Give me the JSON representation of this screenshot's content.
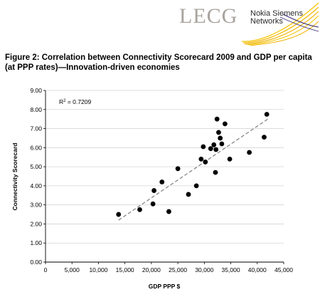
{
  "logos": {
    "lecg": "LECG",
    "nsn_line1": "Nokia Siemens",
    "nsn_line2": "Networks"
  },
  "figure_title": "Figure 2: Correlation between Connectivity Scorecard 2009 and GDP per capita (at PPP rates)—Innovation-driven economies",
  "chart_data": {
    "type": "scatter",
    "title": "",
    "xlabel": "GDP PPP $",
    "ylabel": "Connectivity Scorecard",
    "xlim": [
      0,
      45000
    ],
    "ylim": [
      0,
      9
    ],
    "x_ticks": [
      "0",
      "5,000",
      "10,000",
      "15,000",
      "20,000",
      "25,000",
      "30,000",
      "35,000",
      "40,000",
      "45,000"
    ],
    "y_ticks": [
      "0.00",
      "1.00",
      "2.00",
      "3.00",
      "4.00",
      "5.00",
      "6.00",
      "7.00",
      "8.00",
      "9.00"
    ],
    "annotation": "R",
    "annotation_sup": "2",
    "annotation_value": " = 0.7209",
    "trendline": {
      "x": [
        13800,
        42000
      ],
      "y": [
        2.2,
        7.5
      ],
      "style": "dashed"
    },
    "points": [
      {
        "x": 13800,
        "y": 2.5
      },
      {
        "x": 17800,
        "y": 2.75
      },
      {
        "x": 20300,
        "y": 3.05
      },
      {
        "x": 20500,
        "y": 3.75
      },
      {
        "x": 22000,
        "y": 4.2
      },
      {
        "x": 23300,
        "y": 2.65
      },
      {
        "x": 25000,
        "y": 4.9
      },
      {
        "x": 27000,
        "y": 3.55
      },
      {
        "x": 28500,
        "y": 4.0
      },
      {
        "x": 29400,
        "y": 5.4
      },
      {
        "x": 29800,
        "y": 6.05
      },
      {
        "x": 30200,
        "y": 5.25
      },
      {
        "x": 31200,
        "y": 5.95
      },
      {
        "x": 31800,
        "y": 6.15
      },
      {
        "x": 32100,
        "y": 4.7
      },
      {
        "x": 32200,
        "y": 5.9
      },
      {
        "x": 32400,
        "y": 7.5
      },
      {
        "x": 32700,
        "y": 6.8
      },
      {
        "x": 33000,
        "y": 6.5
      },
      {
        "x": 33300,
        "y": 6.2
      },
      {
        "x": 33900,
        "y": 7.25
      },
      {
        "x": 34800,
        "y": 5.4
      },
      {
        "x": 38500,
        "y": 5.75
      },
      {
        "x": 41300,
        "y": 6.55
      },
      {
        "x": 41800,
        "y": 7.75
      }
    ]
  }
}
